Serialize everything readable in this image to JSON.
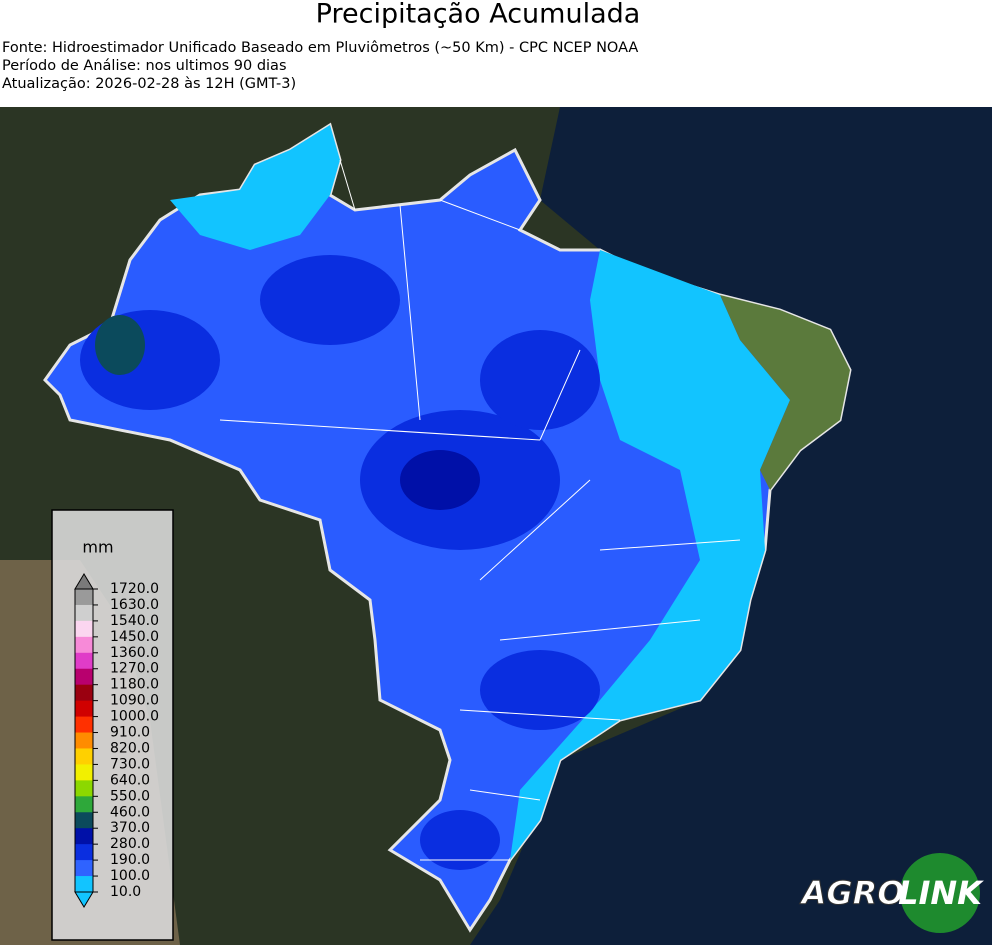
{
  "header": {
    "title": "Precipitação Acumulada",
    "lines": [
      "Fonte: Hidroestimador Unificado Baseado em Pluviômetros (~50 Km) - CPC NCEP NOAA",
      "Período de Análise: nos ultimos 90 dias",
      "Atualização: 2026-02-28 às 12H (GMT-3)"
    ]
  },
  "legend": {
    "unit": "mm",
    "labels": [
      "1720.0",
      "1630.0",
      "1540.0",
      "1450.0",
      "1360.0",
      "1270.0",
      "1180.0",
      "1090.0",
      "1000.0",
      "910.0",
      "820.0",
      "730.0",
      "640.0",
      "550.0",
      "460.0",
      "370.0",
      "280.0",
      "190.0",
      "100.0",
      "10.0"
    ],
    "colors": [
      "#9a9a9a",
      "#cfcfcf",
      "#fbd6f0",
      "#f78ad8",
      "#e03cc8",
      "#b8006e",
      "#9a0010",
      "#d00000",
      "#ff3000",
      "#ff8c00",
      "#ffd000",
      "#f2f000",
      "#8cd800",
      "#2ea83a",
      "#0b4a5c",
      "#0010a8",
      "#0a2ee0",
      "#2f63ff",
      "#12c4ff"
    ],
    "top_color": "#7a7a7a",
    "bottom_color": "#12c4ff"
  },
  "logo": {
    "left": "AGRO",
    "right": "LINK"
  }
}
